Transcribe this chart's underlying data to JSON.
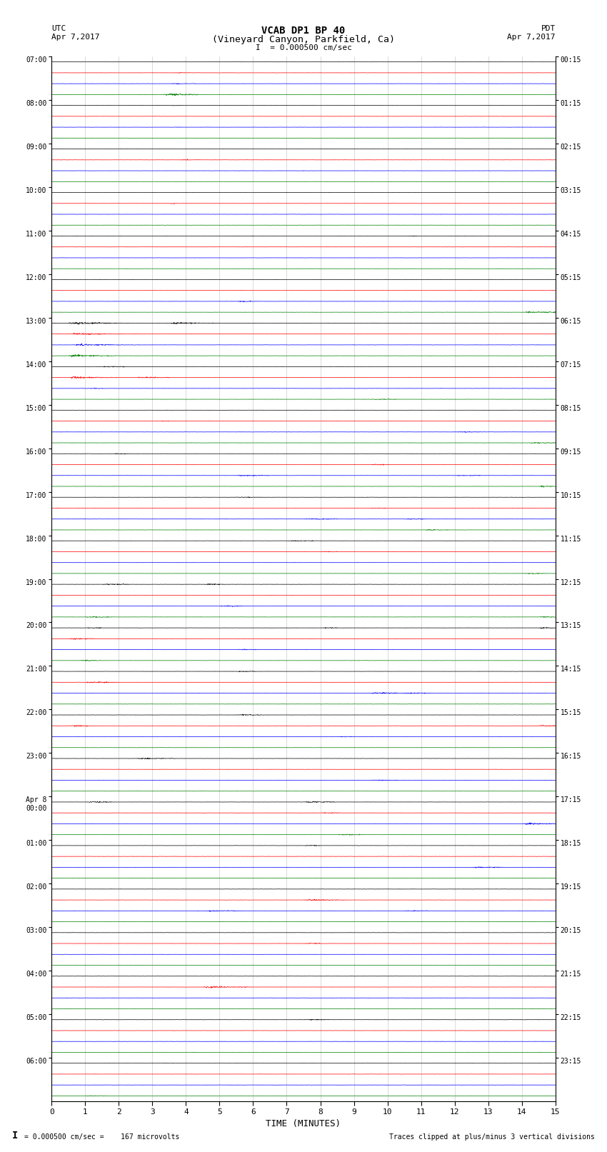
{
  "title_line1": "VCAB DP1 BP 40",
  "title_line2": "(Vineyard Canyon, Parkfield, Ca)",
  "scale_label": "I  = 0.000500 cm/sec",
  "left_header": "UTC\nApr 7,2017",
  "right_header": "PDT\nApr 7,2017",
  "xlabel": "TIME (MINUTES)",
  "footer_left": "0.000500 cm/sec =    167 microvolts",
  "footer_right": "Traces clipped at plus/minus 3 vertical divisions",
  "colors": [
    "black",
    "red",
    "blue",
    "green"
  ],
  "x_min": 0,
  "x_max": 15,
  "x_ticks": [
    0,
    1,
    2,
    3,
    4,
    5,
    6,
    7,
    8,
    9,
    10,
    11,
    12,
    13,
    14,
    15
  ],
  "background_color": "white",
  "hour_labels_utc": [
    "07:00",
    "08:00",
    "09:00",
    "10:00",
    "11:00",
    "12:00",
    "13:00",
    "14:00",
    "15:00",
    "16:00",
    "17:00",
    "18:00",
    "19:00",
    "20:00",
    "21:00",
    "22:00",
    "23:00",
    "Apr 8\n00:00",
    "01:00",
    "02:00",
    "03:00",
    "04:00",
    "05:00",
    "06:00"
  ],
  "hour_labels_pdt": [
    "00:15",
    "01:15",
    "02:15",
    "03:15",
    "04:15",
    "05:15",
    "06:15",
    "07:15",
    "08:15",
    "09:15",
    "10:15",
    "11:15",
    "12:15",
    "13:15",
    "14:15",
    "15:15",
    "16:15",
    "17:15",
    "18:15",
    "19:15",
    "20:15",
    "21:15",
    "22:15",
    "23:15"
  ],
  "figwidth": 8.5,
  "figheight": 16.13,
  "dpi": 100
}
